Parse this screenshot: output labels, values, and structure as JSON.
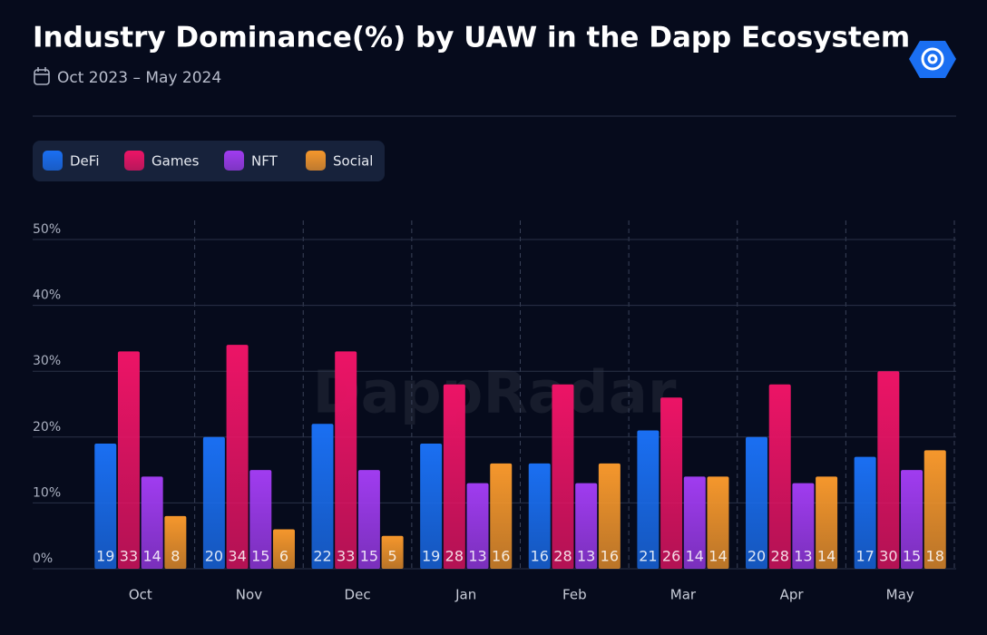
{
  "chart_data": {
    "type": "bar",
    "title": "Industry Dominance(%) by UAW in the Dapp Ecosystem",
    "subtitle": "Oct 2023 – May 2024",
    "watermark": "DappRadar",
    "categories": [
      "Oct",
      "Nov",
      "Dec",
      "Jan",
      "Feb",
      "Mar",
      "Apr",
      "May"
    ],
    "series": [
      {
        "name": "DeFi",
        "color": "#1a6ff2",
        "values": [
          19,
          20,
          22,
          19,
          16,
          21,
          20,
          17
        ]
      },
      {
        "name": "Games",
        "color": "#ec1466",
        "values": [
          33,
          34,
          33,
          28,
          28,
          26,
          28,
          30
        ]
      },
      {
        "name": "NFT",
        "color": "#a03cf0",
        "values": [
          14,
          15,
          15,
          13,
          13,
          14,
          13,
          15
        ]
      },
      {
        "name": "Social",
        "color": "#f5972c",
        "values": [
          8,
          6,
          5,
          16,
          16,
          14,
          14,
          18
        ]
      }
    ],
    "ylim": [
      0,
      50
    ],
    "yticks": [
      {
        "value": 0,
        "label": "0%"
      },
      {
        "value": 10,
        "label": "10%"
      },
      {
        "value": 20,
        "label": "20%"
      },
      {
        "value": 30,
        "label": "30%"
      },
      {
        "value": 40,
        "label": "40%"
      },
      {
        "value": 50,
        "label": "50%"
      }
    ],
    "grid": true,
    "legend": "top-left"
  }
}
